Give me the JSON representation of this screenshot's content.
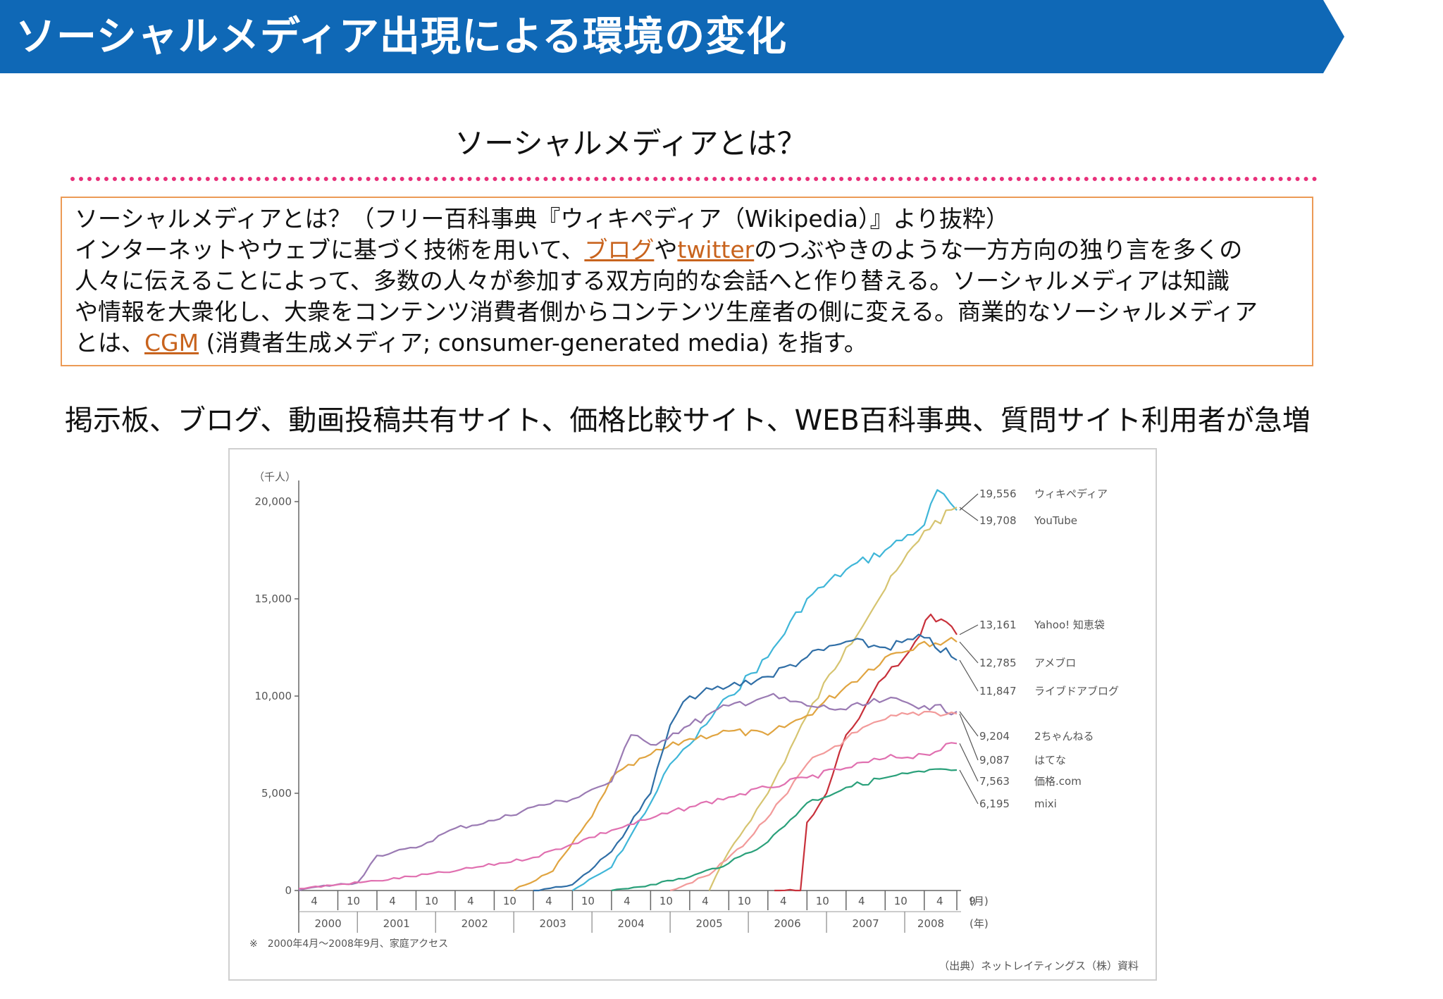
{
  "header": {
    "title": "ソーシャルメディア出現による環境の変化",
    "color": "#0f68b6"
  },
  "section": {
    "subtitle": "ソーシャルメディアとは？"
  },
  "definition": {
    "l1": "ソーシャルメディアとは？（フリー百科事典『ウィキペディア（Wikipedia）』より抜粋）",
    "l2a": "インターネットやウェブに基づく技術を用いて、",
    "l2_link1": "ブログ",
    "l2b": "や",
    "l2_link2": "twitter",
    "l2c": "のつぶやきのような一方方向の独り言を多くの",
    "l3": "人々に伝えることによって、多数の人々が参加する双方向的な会話へと作り替える。ソーシャルメディアは知識",
    "l4": "や情報を大衆化し、大衆をコンテンツ消費者側からコンテンツ生産者の側に変える。商業的なソーシャルメディア",
    "l5a": "とは、",
    "l5_link": "CGM",
    "l5b": " (消費者生成メディア; consumer-generated media) を指す。",
    "link_color": "#c8631d",
    "border_color": "#ec9a55"
  },
  "caption": "掲示板、ブログ、動画投稿共有サイト、価格比較サイト、WEB百科事典、質問サイト利用者が急増",
  "chart_data": {
    "type": "line",
    "ylabel": "（千人）",
    "ylim": [
      0,
      20000
    ],
    "yticks": [
      0,
      5000,
      10000,
      15000,
      20000
    ],
    "ytick_labels": [
      "0",
      "5,000",
      "10,000",
      "15,000",
      "20,000"
    ],
    "xrange": [
      "2000-04",
      "2008-09"
    ],
    "month_labels": [
      "4",
      "10",
      "4",
      "10",
      "4",
      "10",
      "4",
      "10",
      "4",
      "10",
      "4",
      "10",
      "4",
      "10",
      "4",
      "10",
      "4",
      "9"
    ],
    "month_unit": "(月)",
    "year_labels": [
      "2000",
      "2001",
      "2002",
      "2003",
      "2004",
      "2005",
      "2006",
      "2007",
      "2008"
    ],
    "year_unit": "(年)",
    "footnote": "※　2000年4月〜2008年9月、家庭アクセス",
    "source": "（出典）ネットレイティングス（株）資料",
    "series": [
      {
        "name": "ウィキペディア",
        "end_label": "19,556",
        "color": "#3fb6d8",
        "points": [
          [
            "2003-10",
            0
          ],
          [
            "2004-04",
            1200
          ],
          [
            "2004-10",
            4500
          ],
          [
            "2005-01",
            6500
          ],
          [
            "2005-04",
            7500
          ],
          [
            "2005-10",
            10000
          ],
          [
            "2006-04",
            12000
          ],
          [
            "2006-10",
            15000
          ],
          [
            "2007-04",
            16500
          ],
          [
            "2007-10",
            17500
          ],
          [
            "2008-04",
            18800
          ],
          [
            "2008-06",
            20600
          ],
          [
            "2008-09",
            19556
          ]
        ]
      },
      {
        "name": "YouTube",
        "end_label": "19,708",
        "color": "#d6c470",
        "points": [
          [
            "2005-07",
            0
          ],
          [
            "2005-10",
            2000
          ],
          [
            "2006-04",
            5000
          ],
          [
            "2006-10",
            9000
          ],
          [
            "2007-04",
            12500
          ],
          [
            "2007-10",
            15500
          ],
          [
            "2008-04",
            18500
          ],
          [
            "2008-09",
            19708
          ]
        ]
      },
      {
        "name": "Yahoo! 知恵袋",
        "end_label": "13,161",
        "color": "#c8303a",
        "points": [
          [
            "2006-05",
            0
          ],
          [
            "2006-09",
            0
          ],
          [
            "2006-10",
            3500
          ],
          [
            "2007-01",
            5000
          ],
          [
            "2007-04",
            8000
          ],
          [
            "2007-07",
            9500
          ],
          [
            "2007-10",
            11000
          ],
          [
            "2008-01",
            12000
          ],
          [
            "2008-05",
            14200
          ],
          [
            "2008-09",
            13161
          ]
        ]
      },
      {
        "name": "アメブロ",
        "end_label": "12,785",
        "color": "#e0a440",
        "points": [
          [
            "2003-01",
            0
          ],
          [
            "2003-07",
            1000
          ],
          [
            "2004-01",
            3800
          ],
          [
            "2004-04",
            5800
          ],
          [
            "2004-10",
            7000
          ],
          [
            "2005-04",
            7800
          ],
          [
            "2005-10",
            8200
          ],
          [
            "2006-04",
            8000
          ],
          [
            "2006-10",
            9000
          ],
          [
            "2007-04",
            10500
          ],
          [
            "2007-10",
            12000
          ],
          [
            "2008-04",
            12800
          ],
          [
            "2008-09",
            12785
          ]
        ]
      },
      {
        "name": "ライブドアブログ",
        "end_label": "11,847",
        "color": "#2f6ea6",
        "points": [
          [
            "2003-04",
            0
          ],
          [
            "2003-10",
            300
          ],
          [
            "2004-04",
            2000
          ],
          [
            "2004-10",
            5000
          ],
          [
            "2005-01",
            8500
          ],
          [
            "2005-04",
            10000
          ],
          [
            "2005-10",
            10500
          ],
          [
            "2006-04",
            11000
          ],
          [
            "2006-10",
            12000
          ],
          [
            "2007-04",
            12800
          ],
          [
            "2007-10",
            12500
          ],
          [
            "2008-04",
            13000
          ],
          [
            "2008-09",
            11847
          ]
        ]
      },
      {
        "name": "2ちゃんねる",
        "end_label": "9,204",
        "color": "#9a7ab3",
        "points": [
          [
            "2000-04",
            0
          ],
          [
            "2000-07",
            200
          ],
          [
            "2001-01",
            400
          ],
          [
            "2001-04",
            1800
          ],
          [
            "2001-10",
            2200
          ],
          [
            "2002-04",
            3200
          ],
          [
            "2002-10",
            3600
          ],
          [
            "2003-04",
            4300
          ],
          [
            "2003-10",
            4700
          ],
          [
            "2004-01",
            5200
          ],
          [
            "2004-04",
            5600
          ],
          [
            "2004-07",
            8000
          ],
          [
            "2004-10",
            7500
          ],
          [
            "2005-04",
            8500
          ],
          [
            "2005-10",
            9500
          ],
          [
            "2006-04",
            10000
          ],
          [
            "2006-10",
            9500
          ],
          [
            "2007-04",
            9300
          ],
          [
            "2007-10",
            9800
          ],
          [
            "2008-04",
            9500
          ],
          [
            "2008-09",
            9204
          ]
        ]
      },
      {
        "name": "はてな",
        "end_label": "9,087",
        "color": "#f29a9a",
        "points": [
          [
            "2005-01",
            0
          ],
          [
            "2005-07",
            800
          ],
          [
            "2006-01",
            2600
          ],
          [
            "2006-07",
            5000
          ],
          [
            "2006-10",
            6500
          ],
          [
            "2007-04",
            7800
          ],
          [
            "2007-10",
            8800
          ],
          [
            "2008-04",
            9200
          ],
          [
            "2008-09",
            9087
          ]
        ]
      },
      {
        "name": "価格.com",
        "end_label": "7,563",
        "color": "#e070b0",
        "points": [
          [
            "2000-04",
            100
          ],
          [
            "2001-04",
            500
          ],
          [
            "2002-04",
            1000
          ],
          [
            "2003-04",
            1700
          ],
          [
            "2003-10",
            2400
          ],
          [
            "2004-04",
            3100
          ],
          [
            "2004-10",
            3700
          ],
          [
            "2005-04",
            4300
          ],
          [
            "2005-10",
            4800
          ],
          [
            "2006-04",
            5300
          ],
          [
            "2006-10",
            5800
          ],
          [
            "2007-04",
            6300
          ],
          [
            "2007-10",
            6800
          ],
          [
            "2008-04",
            7000
          ],
          [
            "2008-09",
            7563
          ]
        ]
      },
      {
        "name": "mixi",
        "end_label": "6,195",
        "color": "#2aa07a",
        "points": [
          [
            "2004-04",
            0
          ],
          [
            "2004-10",
            300
          ],
          [
            "2005-04",
            700
          ],
          [
            "2005-10",
            1400
          ],
          [
            "2006-04",
            2500
          ],
          [
            "2006-10",
            4500
          ],
          [
            "2007-04",
            5300
          ],
          [
            "2007-10",
            5800
          ],
          [
            "2008-04",
            6100
          ],
          [
            "2008-09",
            6195
          ]
        ]
      }
    ]
  }
}
